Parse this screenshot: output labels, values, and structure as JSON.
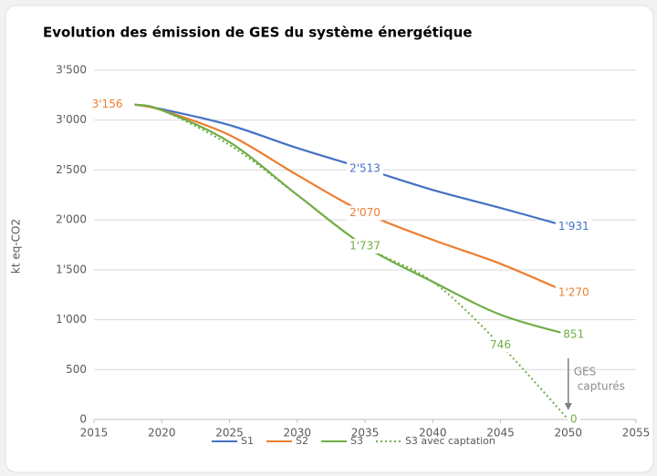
{
  "chart_data": {
    "type": "line",
    "title": "Evolution des émission de GES du système énergétique",
    "y_label": "kt eq-CO2",
    "x": [
      2018,
      2020,
      2025,
      2030,
      2035,
      2040,
      2045,
      2050
    ],
    "series": [
      {
        "name": "S1",
        "color": "#4472c4",
        "dash": false,
        "values": [
          3156,
          3110,
          2950,
          2720,
          2513,
          2300,
          2120,
          1931
        ],
        "value_labels": [
          null,
          null,
          null,
          null,
          "2'513",
          null,
          null,
          "1'931"
        ]
      },
      {
        "name": "S2",
        "color": "#ed7d31",
        "dash": false,
        "values": [
          3156,
          3100,
          2850,
          2450,
          2070,
          1800,
          1560,
          1270
        ],
        "value_labels": [
          "3'156",
          null,
          null,
          null,
          "2'070",
          null,
          null,
          "1'270"
        ]
      },
      {
        "name": "S3",
        "color": "#70ad47",
        "dash": false,
        "values": [
          3156,
          3100,
          2780,
          2250,
          1737,
          1380,
          1050,
          851
        ],
        "value_labels": [
          null,
          null,
          null,
          null,
          "1'737",
          null,
          null,
          "851"
        ]
      },
      {
        "name": "S3 avec captation",
        "color": "#70ad47",
        "dash": true,
        "values": [
          3156,
          3100,
          2750,
          2250,
          1737,
          1380,
          746,
          0
        ],
        "value_labels": [
          null,
          null,
          null,
          null,
          null,
          null,
          "746",
          "0"
        ]
      }
    ],
    "annotation": [
      "GES",
      "capturés"
    ],
    "xlim": [
      2015,
      2055
    ],
    "xticks": [
      2015,
      2020,
      2025,
      2030,
      2035,
      2040,
      2045,
      2050,
      2055
    ],
    "ylim": [
      0,
      3500
    ],
    "yticks": [
      0,
      500,
      {
        "value": 1000,
        "label": "1'000"
      },
      {
        "value": 1500,
        "label": "1'500"
      },
      {
        "value": 2000,
        "label": "2'000"
      },
      {
        "value": 2500,
        "label": "2'500"
      },
      {
        "value": 3000,
        "label": "3'000"
      },
      {
        "value": 3500,
        "label": "3'500"
      }
    ],
    "grid": true,
    "legend": "bottom"
  }
}
